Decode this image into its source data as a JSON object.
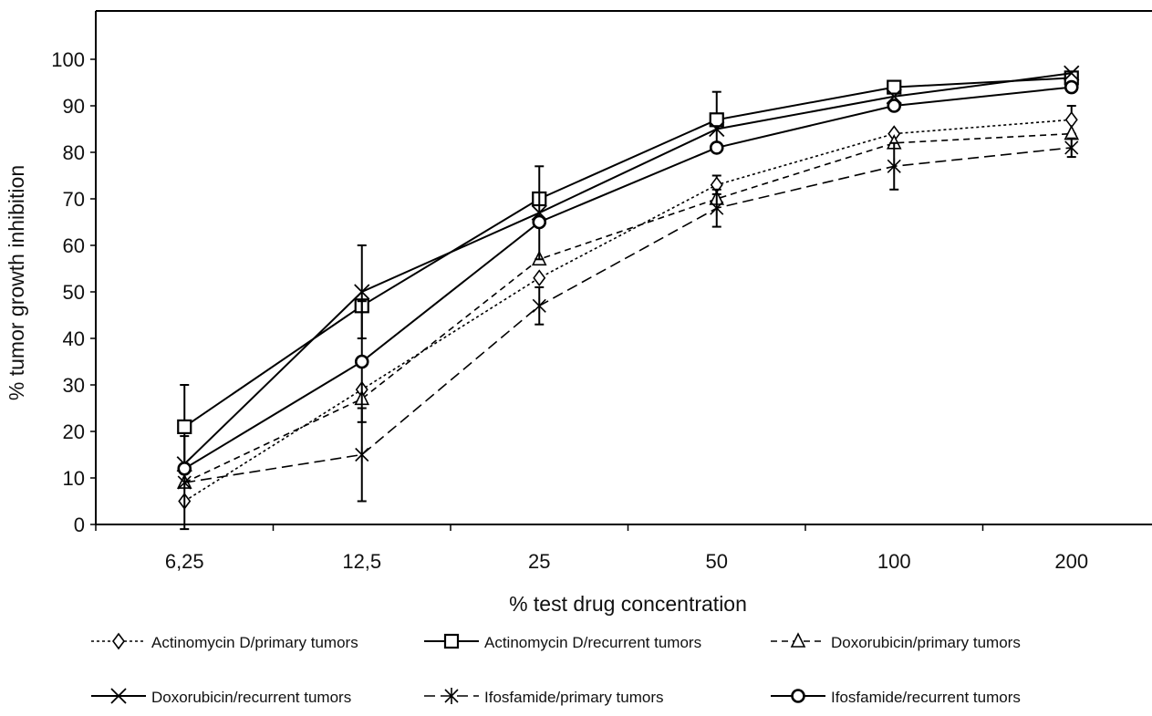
{
  "chart_data": {
    "type": "line",
    "title": "",
    "xlabel": "% test drug concentration",
    "ylabel": "% tumor growth inhibition",
    "categories": [
      "6,25",
      "12,5",
      "25",
      "50",
      "100",
      "200"
    ],
    "ylim": [
      0,
      100
    ],
    "yticks": [
      0,
      10,
      20,
      30,
      40,
      50,
      60,
      70,
      80,
      90,
      100
    ],
    "grid": false,
    "legend_position": "bottom",
    "series": [
      {
        "name": "Actinomycin D/primary tumors",
        "line_style": "dotted",
        "marker": "diamond",
        "values": [
          5,
          29,
          53,
          73,
          84,
          87
        ],
        "errors": [
          0,
          0,
          0,
          2,
          0,
          3
        ]
      },
      {
        "name": "Actinomycin D/recurrent tumors",
        "line_style": "solid",
        "marker": "square",
        "values": [
          21,
          47,
          70,
          87,
          94,
          96
        ],
        "errors": [
          9,
          0,
          0,
          6,
          0,
          0
        ]
      },
      {
        "name": "Doxorubicin/primary tumors",
        "line_style": "dashed",
        "marker": "triangle",
        "values": [
          9,
          27,
          57,
          70,
          82,
          84
        ],
        "errors": [
          0,
          0,
          0,
          0,
          0,
          0
        ]
      },
      {
        "name": "Doxorubicin/recurrent tumors",
        "line_style": "solid",
        "marker": "x",
        "values": [
          13,
          50,
          67,
          85,
          92,
          97
        ],
        "errors": [
          0,
          10,
          10,
          0,
          0,
          0
        ]
      },
      {
        "name": "Ifosfamide/primary tumors",
        "line_style": "longdash",
        "marker": "star",
        "values": [
          9,
          15,
          47,
          68,
          77,
          81
        ],
        "errors": [
          10,
          10,
          4,
          4,
          5,
          2
        ]
      },
      {
        "name": "Ifosfamide/recurrent tumors",
        "line_style": "solid",
        "marker": "circle",
        "values": [
          12,
          35,
          65,
          81,
          90,
          94
        ],
        "errors": [
          0,
          13,
          0,
          0,
          0,
          0
        ]
      }
    ]
  }
}
